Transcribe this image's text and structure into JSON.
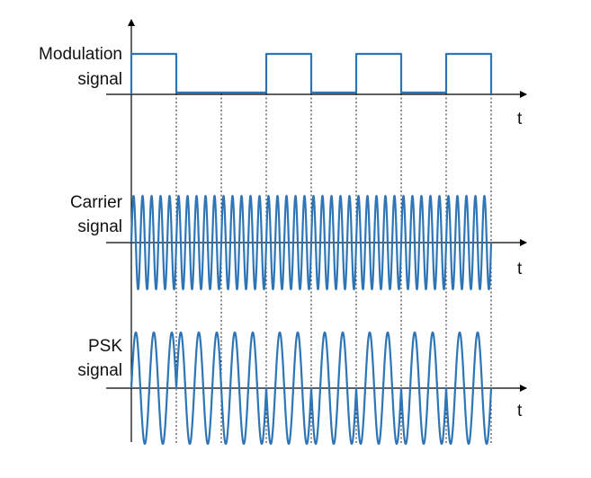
{
  "labels": {
    "modulation_line1": "Modulation",
    "modulation_line2": "signal",
    "carrier_line1": "Carrier",
    "carrier_line2": "signal",
    "psk_line1": "PSK",
    "psk_line2": "signal",
    "time_axis_1": "t",
    "time_axis_2": "t",
    "time_axis_3": "t"
  },
  "modulation_bits": [
    1,
    0,
    0,
    1,
    0,
    1,
    0,
    1
  ],
  "carrier_cycles_per_bit": 5,
  "psk_cycles_per_bit": 2.5,
  "colors": {
    "signal": "#2e75b6",
    "axis": "#000000",
    "boundary": "#222222"
  },
  "icons": [
    "arrow-up-icon",
    "arrow-right-icon"
  ]
}
